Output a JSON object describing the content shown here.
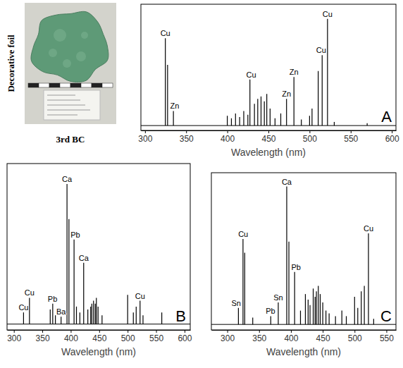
{
  "photo": {
    "label": "Decorative foil",
    "caption": "3rd BC"
  },
  "chart_data": [
    {
      "type": "stem",
      "title": "A",
      "x_label": "Wavelength (nm)",
      "color": "#000000",
      "x": [
        324.7,
        327.4,
        334.5,
        400,
        405,
        410,
        415,
        420,
        425,
        427.5,
        433,
        437,
        441,
        445,
        448,
        452,
        458,
        465,
        472,
        481,
        490,
        500,
        503,
        510.5,
        515.3,
        521.8,
        530,
        570
      ],
      "values": [
        72,
        50,
        12,
        8,
        6,
        10,
        7,
        12,
        9,
        38,
        18,
        22,
        24,
        20,
        26,
        14,
        6,
        10,
        22,
        40,
        5,
        8,
        14,
        45,
        58,
        88,
        3,
        2
      ],
      "xlim": [
        295,
        605
      ],
      "xticks": [
        300,
        350,
        400,
        450,
        500,
        550,
        600
      ],
      "ylim": [
        -4,
        100
      ],
      "tick_labels": "x",
      "annotations": [
        {
          "text": "Cu",
          "x": 324.7
        },
        {
          "text": "Zn",
          "x": 336
        },
        {
          "text": "Cu",
          "x": 429
        },
        {
          "text": "Zn",
          "x": 472
        },
        {
          "text": "Zn",
          "x": 481
        },
        {
          "text": "Cu",
          "x": 514
        },
        {
          "text": "Cu",
          "x": 521.8
        }
      ]
    },
    {
      "type": "stem",
      "title": "B",
      "x_label": "Wavelength (nm)",
      "color": "#000000",
      "x": [
        317,
        327.4,
        363.9,
        368.3,
        373,
        383,
        393.4,
        396.8,
        405.8,
        410,
        416,
        422.7,
        430,
        435,
        437,
        440,
        443,
        445,
        448,
        455,
        500,
        510,
        515,
        521.8,
        527,
        560
      ],
      "values": [
        8,
        18,
        10,
        14,
        6,
        5,
        96,
        72,
        58,
        12,
        8,
        42,
        10,
        12,
        14,
        16,
        14,
        18,
        12,
        6,
        20,
        8,
        12,
        16,
        6,
        8
      ],
      "xlim": [
        288,
        610
      ],
      "xticks": [
        300,
        350,
        400,
        450,
        500,
        550,
        600
      ],
      "ylim": [
        -4,
        110
      ],
      "tick_labels": "x",
      "annotations": [
        {
          "text": "Cu",
          "x": 317
        },
        {
          "text": "Cu",
          "x": 327.4
        },
        {
          "text": "Pb",
          "x": 368
        },
        {
          "text": "Ba",
          "x": 383
        },
        {
          "text": "Ca",
          "x": 393.4
        },
        {
          "text": "Pb",
          "x": 408
        },
        {
          "text": "Ca",
          "x": 422.7
        },
        {
          "text": "Cu",
          "x": 521.8
        }
      ]
    },
    {
      "type": "stem",
      "title": "C",
      "x_label": "Wavelength (nm)",
      "color": "#000000",
      "x": [
        317.5,
        324.7,
        327.4,
        340,
        368.3,
        380.1,
        393.4,
        396.8,
        405.8,
        415,
        422.7,
        427,
        430,
        435,
        438,
        440,
        443,
        446,
        450,
        455,
        460,
        470,
        480,
        487,
        500,
        505,
        510.5,
        515.3,
        521.8,
        530
      ],
      "values": [
        12,
        62,
        52,
        5,
        6,
        16,
        100,
        60,
        38,
        10,
        22,
        18,
        14,
        26,
        20,
        24,
        28,
        22,
        16,
        10,
        8,
        6,
        10,
        6,
        20,
        12,
        24,
        28,
        66,
        4
      ],
      "xlim": [
        275,
        565
      ],
      "xticks": [
        300,
        350,
        400,
        450,
        500,
        550
      ],
      "ylim": [
        -4,
        110
      ],
      "tick_labels": "x",
      "annotations": [
        {
          "text": "Sn",
          "x": 314
        },
        {
          "text": "Cu",
          "x": 325
        },
        {
          "text": "Pb",
          "x": 368
        },
        {
          "text": "Sn",
          "x": 380
        },
        {
          "text": "Ca",
          "x": 393.4
        },
        {
          "text": "Pb",
          "x": 408
        },
        {
          "text": "Cu",
          "x": 521.8
        }
      ]
    }
  ]
}
